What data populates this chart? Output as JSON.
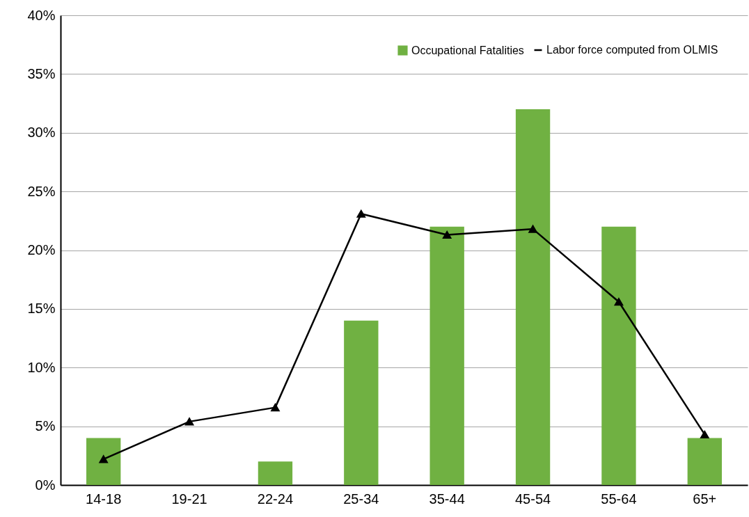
{
  "chart_data": {
    "type": "bar",
    "categories": [
      "14-18",
      "19-21",
      "22-24",
      "25-34",
      "35-44",
      "45-54",
      "55-64",
      "65+"
    ],
    "series": [
      {
        "name": "Occupational Fatalities",
        "color": "#70b142",
        "values": [
          4,
          0,
          2,
          14,
          22,
          32,
          22,
          4
        ]
      },
      {
        "name": "Labor force computed from OLMIS",
        "type": "line",
        "color": "#000000",
        "marker": "triangle",
        "values": [
          2.2,
          5.4,
          6.6,
          23.1,
          21.3,
          21.8,
          15.6,
          4.3
        ]
      }
    ],
    "ylim": [
      0,
      40
    ],
    "yticks": [
      {
        "value": 0,
        "label": "0%"
      },
      {
        "value": 5,
        "label": "5%"
      },
      {
        "value": 10,
        "label": "10%"
      },
      {
        "value": 15,
        "label": "15%"
      },
      {
        "value": 20,
        "label": "20%"
      },
      {
        "value": 25,
        "label": "25%"
      },
      {
        "value": 30,
        "label": "30%"
      },
      {
        "value": 35,
        "label": "35%"
      },
      {
        "value": 40,
        "label": "40%"
      }
    ],
    "grid": "y",
    "legend": "top right"
  }
}
